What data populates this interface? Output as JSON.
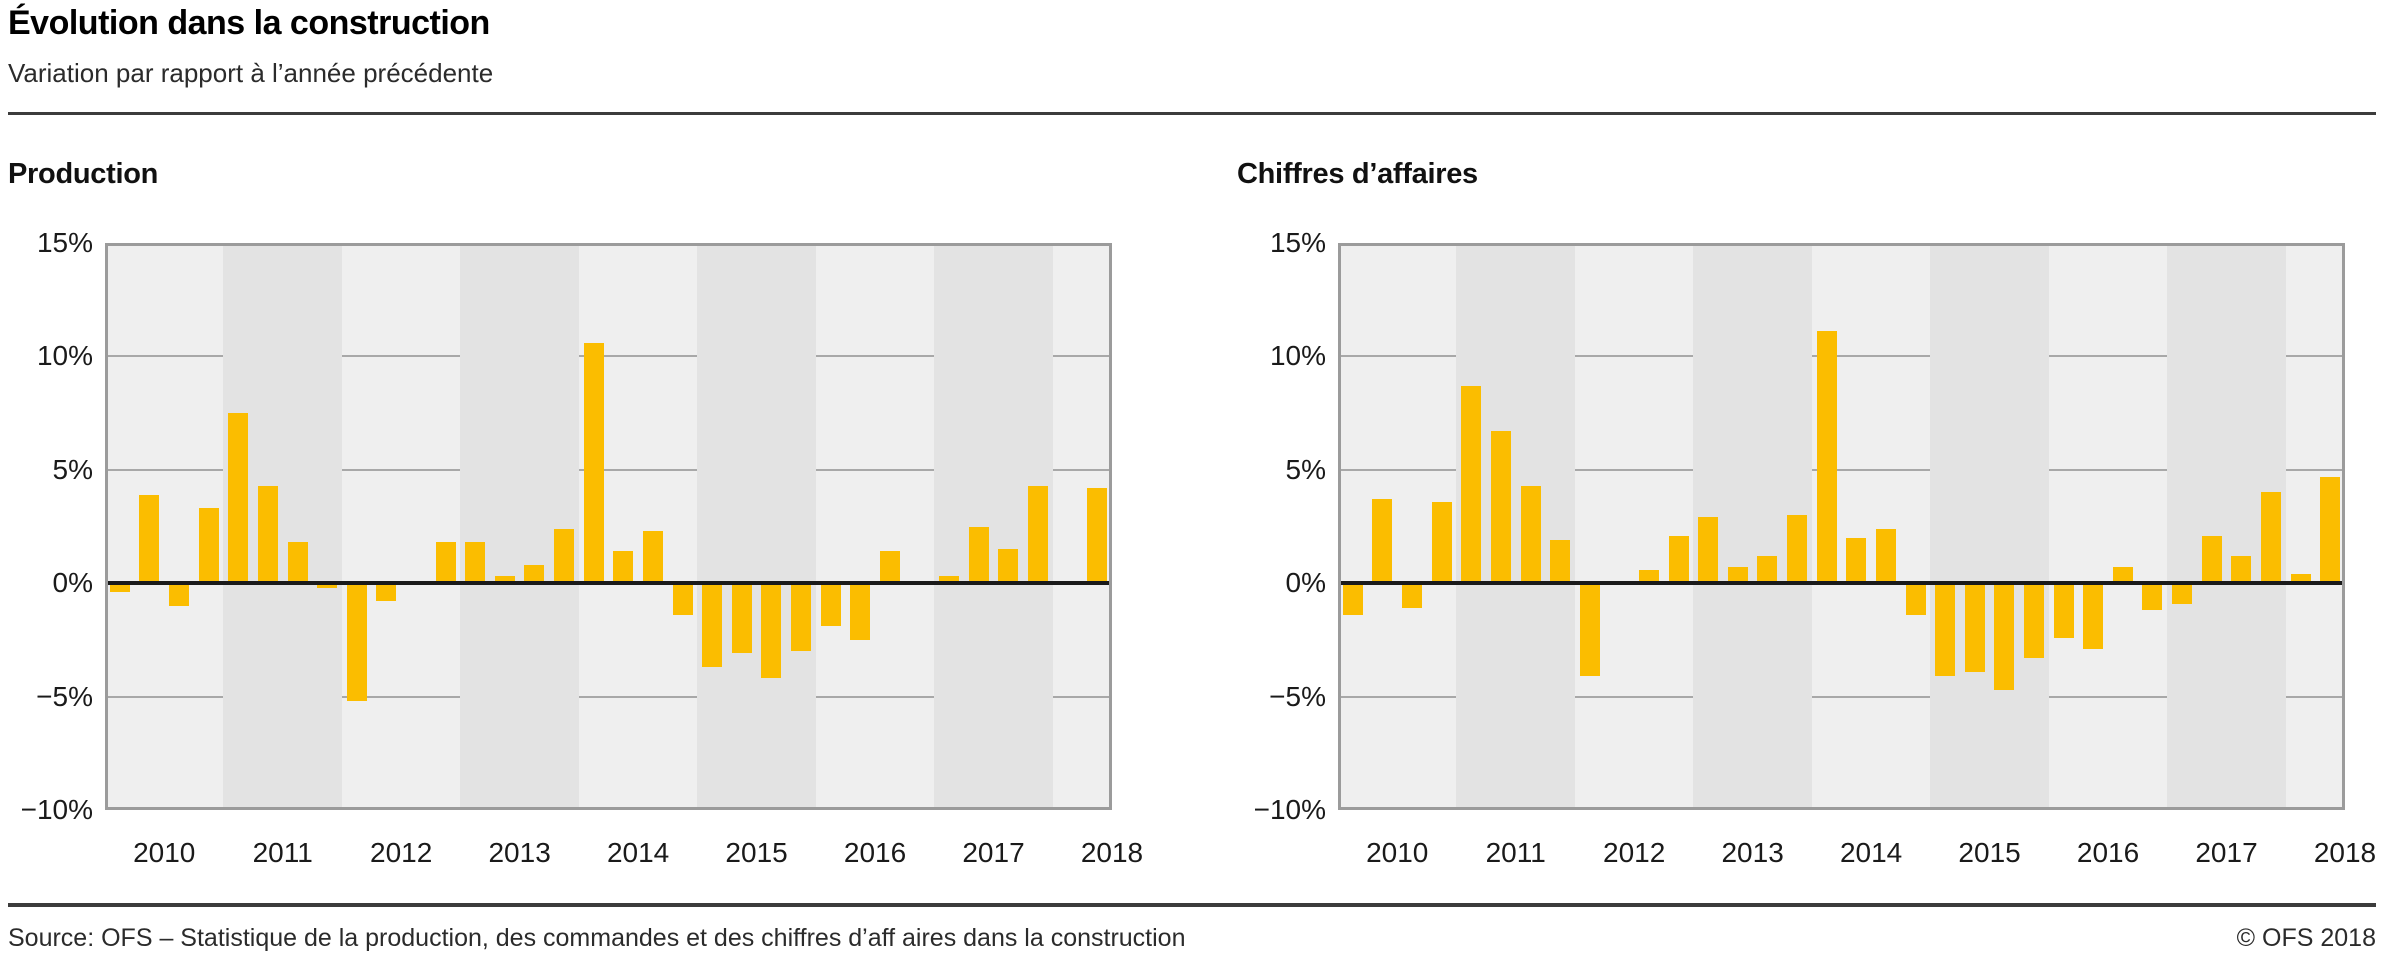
{
  "header": {
    "title": "Évolution dans la construction",
    "subtitle": "Variation par rapport à l’année précédente"
  },
  "footer": {
    "source": "Source: OFS – Statistique de la production, des commandes et des chiffres d’aff aires dans la construction",
    "copyright": "© OFS 2018"
  },
  "axis": {
    "y_tick_labels": [
      "15%",
      "10%",
      "5%",
      "0%",
      "−5%",
      "−10%"
    ],
    "y_tick_values": [
      15,
      10,
      5,
      0,
      -5,
      -10
    ],
    "x_labels": [
      "2010",
      "2011",
      "2012",
      "2013",
      "2014",
      "2015",
      "2016",
      "2017",
      "2018"
    ]
  },
  "colors": {
    "bar": "#FBBD00",
    "band_light": "#EFEFEF",
    "band_dark": "#E3E3E3",
    "gridline": "#A8A8A8",
    "frame": "#9B9B9B",
    "zero_line": "#1A1A1A",
    "rule": "#3C3C3C"
  },
  "chart_data": [
    {
      "type": "bar",
      "title": "Production",
      "unit": "%",
      "ylim": [
        -10,
        15
      ],
      "ytick_interval": 5,
      "grid": "horizontal, shown on light year bands only",
      "legend": "none",
      "categories": [
        "2010",
        "2011",
        "2012",
        "2013",
        "2014",
        "2015",
        "2016",
        "2017",
        "2018"
      ],
      "series": [
        {
          "year": "2010",
          "values": [
            -0.4,
            3.9,
            -1.0,
            3.3
          ]
        },
        {
          "year": "2011",
          "values": [
            7.5,
            4.3,
            1.8,
            -0.2
          ]
        },
        {
          "year": "2012",
          "values": [
            -5.2,
            -0.8,
            0.1,
            1.8
          ]
        },
        {
          "year": "2013",
          "values": [
            1.8,
            0.3,
            0.8,
            2.4
          ]
        },
        {
          "year": "2014",
          "values": [
            10.6,
            1.4,
            2.3,
            -1.4
          ]
        },
        {
          "year": "2015",
          "values": [
            -3.7,
            -3.1,
            -4.2,
            -3.0
          ]
        },
        {
          "year": "2016",
          "values": [
            -1.9,
            -2.5,
            1.4,
            -0.1
          ]
        },
        {
          "year": "2017",
          "values": [
            0.3,
            2.5,
            1.5,
            4.3
          ]
        },
        {
          "year": "2018",
          "values": [
            -0.1,
            4.2
          ]
        }
      ]
    },
    {
      "type": "bar",
      "title": "Chiffres d’affaires",
      "unit": "%",
      "ylim": [
        -10,
        15
      ],
      "ytick_interval": 5,
      "grid": "horizontal, shown on light year bands only",
      "legend": "none",
      "categories": [
        "2010",
        "2011",
        "2012",
        "2013",
        "2014",
        "2015",
        "2016",
        "2017",
        "2018"
      ],
      "series": [
        {
          "year": "2010",
          "values": [
            -1.4,
            3.7,
            -1.1,
            3.6
          ]
        },
        {
          "year": "2011",
          "values": [
            8.7,
            6.7,
            4.3,
            1.9
          ]
        },
        {
          "year": "2012",
          "values": [
            -4.1,
            0.0,
            0.6,
            2.1
          ]
        },
        {
          "year": "2013",
          "values": [
            2.9,
            0.7,
            1.2,
            3.0
          ]
        },
        {
          "year": "2014",
          "values": [
            11.1,
            2.0,
            2.4,
            -1.4
          ]
        },
        {
          "year": "2015",
          "values": [
            -4.1,
            -3.9,
            -4.7,
            -3.3
          ]
        },
        {
          "year": "2016",
          "values": [
            -2.4,
            -2.9,
            0.7,
            -1.2
          ]
        },
        {
          "year": "2017",
          "values": [
            -0.9,
            2.1,
            1.2,
            4.0
          ]
        },
        {
          "year": "2018",
          "values": [
            0.4,
            4.7
          ]
        }
      ]
    }
  ]
}
